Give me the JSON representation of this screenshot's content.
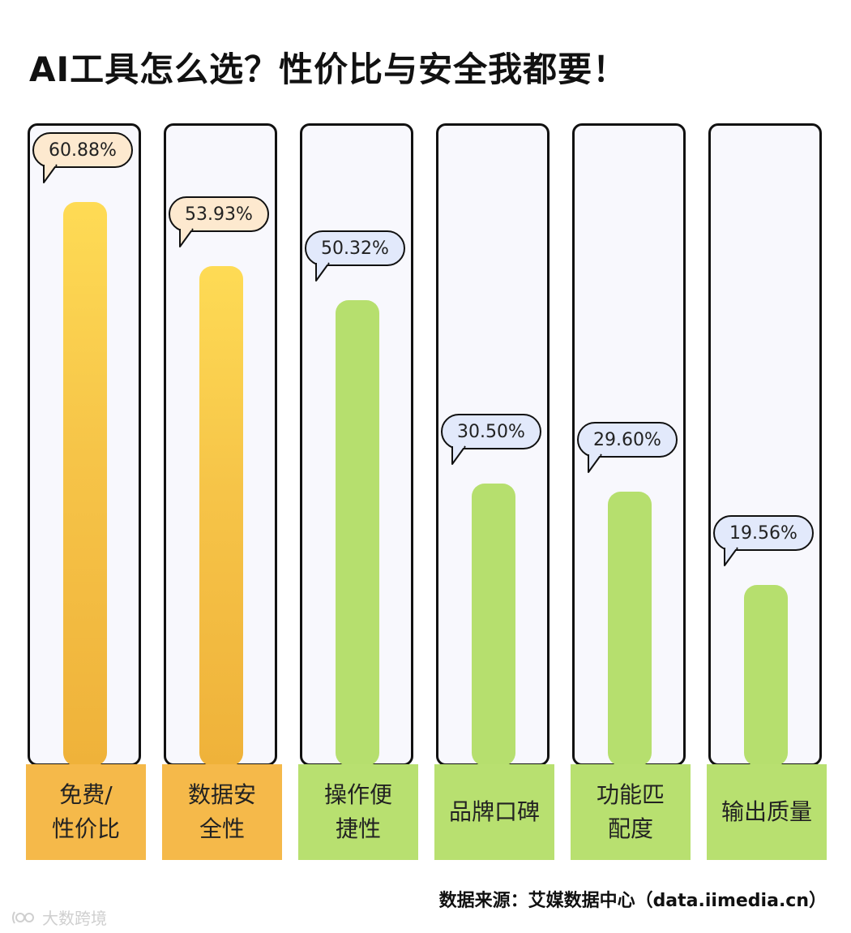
{
  "title": "AI工具怎么选？性价比与安全我都要！",
  "chart_data": {
    "type": "bar",
    "categories": [
      [
        "免费/",
        "性价比"
      ],
      [
        "数据安",
        "全性"
      ],
      [
        "操作便",
        "捷性"
      ],
      [
        "品牌口碑"
      ],
      [
        "功能匹",
        "配度"
      ],
      [
        "输出质量"
      ]
    ],
    "values": [
      60.88,
      53.93,
      50.32,
      30.5,
      29.6,
      19.56
    ],
    "value_labels": [
      "60.88%",
      "53.93%",
      "50.32%",
      "30.50%",
      "29.60%",
      "19.56%"
    ],
    "highlight": [
      "orange",
      "orange",
      "green",
      "green",
      "green",
      "green"
    ],
    "ylim": [
      0,
      70
    ],
    "colors": {
      "orange_bar_top": "#fedb55",
      "orange_bar_bottom": "#efb23a",
      "green_bar": "#b6df6e",
      "orange_bubble": "#fde9cf",
      "green_bubble": "#e2e9fb",
      "orange_label": "#f5b94a",
      "green_label": "#b8e070"
    }
  },
  "source": "数据来源：艾媒数据中心（data.iimedia.cn）",
  "watermark": "大数跨境"
}
